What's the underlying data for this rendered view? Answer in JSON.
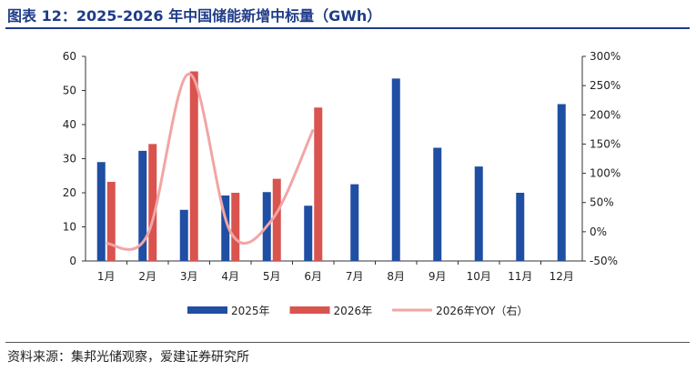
{
  "header": {
    "title": "图表 12：2025-2026 年中国储能新增中标量（GWh）"
  },
  "footer": {
    "source": "资料来源：集邦光储观察，爱建证券研究所"
  },
  "colors": {
    "title": "#1f3c88",
    "s2025": "#1f4ea3",
    "s2026": "#d9534f",
    "yoy": "#f2a5a5",
    "axis": "#333333"
  },
  "chart_data": {
    "type": "bar",
    "categories": [
      "1月",
      "2月",
      "3月",
      "4月",
      "5月",
      "6月",
      "7月",
      "8月",
      "9月",
      "10月",
      "11月",
      "12月"
    ],
    "series": [
      {
        "name": "2025年",
        "type": "bar",
        "axis": "left",
        "color": "#1f4ea3",
        "values": [
          29,
          32.3,
          15,
          19.2,
          20.2,
          16.2,
          22.5,
          53.5,
          33.2,
          27.7,
          20,
          46
        ]
      },
      {
        "name": "2026年",
        "type": "bar",
        "axis": "left",
        "color": "#d9534f",
        "values": [
          23.2,
          34.3,
          55.6,
          20,
          24.1,
          45,
          null,
          null,
          null,
          null,
          null,
          null
        ]
      },
      {
        "name": "2026年YOY（右）",
        "type": "line",
        "axis": "right",
        "color": "#f2a5a5",
        "values": [
          -20,
          -5,
          270,
          0,
          20,
          175,
          null,
          null,
          null,
          null,
          null,
          null
        ]
      }
    ],
    "y_left": {
      "min": 0,
      "max": 60,
      "ticks": [
        0,
        10,
        20,
        30,
        40,
        50,
        60
      ]
    },
    "y_right": {
      "min": -50,
      "max": 300,
      "ticks": [
        "-50%",
        "0%",
        "50%",
        "100%",
        "150%",
        "200%",
        "250%",
        "300%"
      ]
    },
    "grid": false,
    "legend_position": "bottom"
  }
}
